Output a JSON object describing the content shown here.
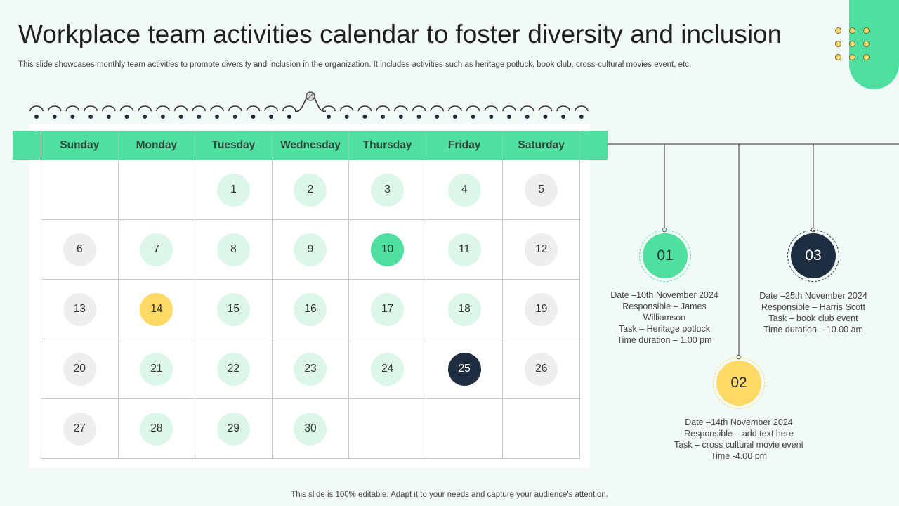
{
  "header": {
    "title": "Workplace team activities calendar to foster diversity and inclusion",
    "subtitle": "This slide showcases monthly team activities to promote diversity and inclusion in the organization. It includes activities such as heritage potluck, book club, cross-cultural movies event, etc."
  },
  "calendar": {
    "weekdays": [
      "Sunday",
      "Monday",
      "Tuesday",
      "Wednesday",
      "Thursday",
      "Friday",
      "Saturday"
    ],
    "weeks": [
      [
        null,
        null,
        {
          "d": "1",
          "s": "mint"
        },
        {
          "d": "2",
          "s": "mint"
        },
        {
          "d": "3",
          "s": "mint"
        },
        {
          "d": "4",
          "s": "mint"
        },
        {
          "d": "5",
          "s": "gray"
        }
      ],
      [
        {
          "d": "6",
          "s": "gray"
        },
        {
          "d": "7",
          "s": "mint"
        },
        {
          "d": "8",
          "s": "mint"
        },
        {
          "d": "9",
          "s": "mint"
        },
        {
          "d": "10",
          "s": "green"
        },
        {
          "d": "11",
          "s": "mint"
        },
        {
          "d": "12",
          "s": "gray"
        }
      ],
      [
        {
          "d": "13",
          "s": "gray"
        },
        {
          "d": "14",
          "s": "yellow"
        },
        {
          "d": "15",
          "s": "mint"
        },
        {
          "d": "16",
          "s": "mint"
        },
        {
          "d": "17",
          "s": "mint"
        },
        {
          "d": "18",
          "s": "mint"
        },
        {
          "d": "19",
          "s": "gray"
        }
      ],
      [
        {
          "d": "20",
          "s": "gray"
        },
        {
          "d": "21",
          "s": "mint"
        },
        {
          "d": "22",
          "s": "mint"
        },
        {
          "d": "23",
          "s": "mint"
        },
        {
          "d": "24",
          "s": "mint"
        },
        {
          "d": "25",
          "s": "navy"
        },
        {
          "d": "26",
          "s": "gray"
        }
      ],
      [
        {
          "d": "27",
          "s": "gray"
        },
        {
          "d": "28",
          "s": "mint"
        },
        {
          "d": "29",
          "s": "mint"
        },
        {
          "d": "30",
          "s": "mint"
        },
        null,
        null,
        null
      ]
    ]
  },
  "events": [
    {
      "number": "01",
      "lines": [
        "Date –10th November  2024",
        "Responsible  – James",
        "Williamson",
        "Task – Heritage  potluck",
        "Time duration   – 1.00 pm"
      ]
    },
    {
      "number": "02",
      "lines": [
        "Date –14th November  2024",
        "Responsible  – add text here",
        "Task – cross cultural movie  event",
        "Time -4.00 pm"
      ]
    },
    {
      "number": "03",
      "lines": [
        "Date –25th November  2024",
        "Responsible  – Harris Scott",
        "Task – book club event",
        "Time duration  – 10.00 am"
      ]
    }
  ],
  "colors": {
    "accent": "#4fe0a0",
    "mint": "#dcf7ea",
    "gray": "#eeeeee",
    "yellow": "#ffd966",
    "navy": "#1f2d40"
  },
  "footer": {
    "text": "This slide is 100% editable. Adapt it to your needs and capture your audience's attention."
  }
}
